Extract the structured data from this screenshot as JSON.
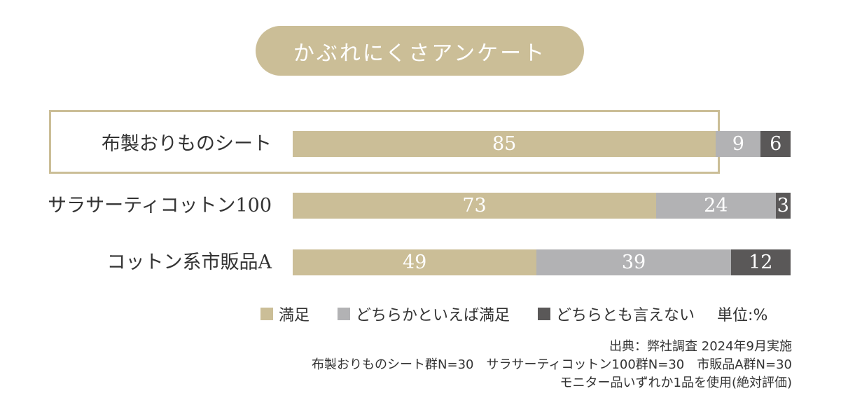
{
  "title": "かぶれにくさアンケート",
  "colors": {
    "satisfied": "#cbbe97",
    "somewhat": "#b2b2b4",
    "neither": "#5a5858"
  },
  "legend": {
    "satisfied": "満足",
    "somewhat": "どちらかといえば満足",
    "neither": "どちらとも言えない",
    "unit": "単位:%"
  },
  "chart_data": {
    "type": "bar",
    "orientation": "horizontal",
    "stacked": true,
    "title": "かぶれにくさアンケート",
    "categories": [
      "布製おりものシート",
      "サラサーティコットン100",
      "コットン系市販品A"
    ],
    "series": [
      {
        "name": "満足",
        "values": [
          85,
          73,
          49
        ]
      },
      {
        "name": "どちらかといえば満足",
        "values": [
          9,
          24,
          39
        ]
      },
      {
        "name": "どちらとも言えない",
        "values": [
          6,
          3,
          12
        ]
      }
    ],
    "unit": "%",
    "xlim": [
      0,
      100
    ],
    "legend_position": "bottom",
    "grid": false,
    "highlighted_category": "布製おりものシート"
  },
  "notes": [
    "出典：弊社調査 2024年9月実施",
    "布製おりものシート群N=30　サラサーティコットン100群N=30　市販品A群N=30",
    "モニター品いずれか1品を使用(絶対評価)"
  ]
}
